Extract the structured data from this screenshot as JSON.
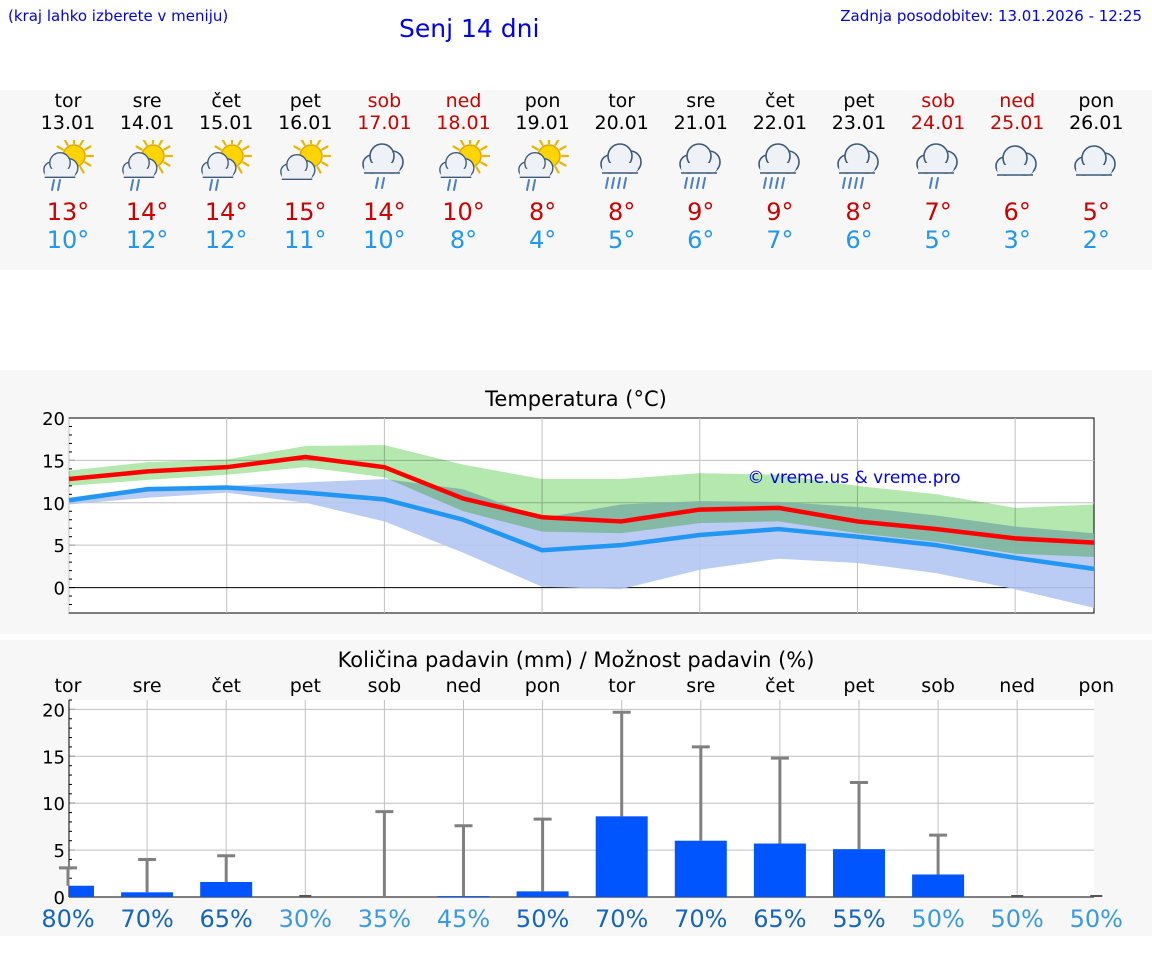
{
  "header": {
    "menu_hint": "(kraj lahko izberete v meniju)",
    "title": "Senj 14 dni",
    "last_update": "Zadnja posodobitev: 13.01.2026 - 12:25"
  },
  "days": [
    {
      "name": "tor",
      "date": "13.01",
      "tmax": "13°",
      "tmin": "10°",
      "icon": "sun-cloud-rain-icon",
      "weekend": false
    },
    {
      "name": "sre",
      "date": "14.01",
      "tmax": "14°",
      "tmin": "12°",
      "icon": "sun-cloud-rain-icon",
      "weekend": false
    },
    {
      "name": "čet",
      "date": "15.01",
      "tmax": "14°",
      "tmin": "12°",
      "icon": "sun-cloud-rain-icon",
      "weekend": false
    },
    {
      "name": "pet",
      "date": "16.01",
      "tmax": "15°",
      "tmin": "11°",
      "icon": "sun-cloud-icon",
      "weekend": false
    },
    {
      "name": "sob",
      "date": "17.01",
      "tmax": "14°",
      "tmin": "10°",
      "icon": "cloud-rain-icon",
      "weekend": true
    },
    {
      "name": "ned",
      "date": "18.01",
      "tmax": "10°",
      "tmin": "8°",
      "icon": "sun-cloud-rain-icon",
      "weekend": true
    },
    {
      "name": "pon",
      "date": "19.01",
      "tmax": "8°",
      "tmin": "4°",
      "icon": "sun-cloud-rain-icon",
      "weekend": false
    },
    {
      "name": "tor",
      "date": "20.01",
      "tmax": "8°",
      "tmin": "5°",
      "icon": "cloud-heavy-rain-icon",
      "weekend": false
    },
    {
      "name": "sre",
      "date": "21.01",
      "tmax": "9°",
      "tmin": "6°",
      "icon": "cloud-heavy-rain-icon",
      "weekend": false
    },
    {
      "name": "čet",
      "date": "22.01",
      "tmax": "9°",
      "tmin": "7°",
      "icon": "cloud-heavy-rain-icon",
      "weekend": false
    },
    {
      "name": "pet",
      "date": "23.01",
      "tmax": "8°",
      "tmin": "6°",
      "icon": "cloud-heavy-rain-icon",
      "weekend": false
    },
    {
      "name": "sob",
      "date": "24.01",
      "tmax": "7°",
      "tmin": "5°",
      "icon": "cloud-rain-icon",
      "weekend": true
    },
    {
      "name": "ned",
      "date": "25.01",
      "tmax": "6°",
      "tmin": "3°",
      "icon": "cloud-icon",
      "weekend": true
    },
    {
      "name": "pon",
      "date": "26.01",
      "tmax": "5°",
      "tmin": "2°",
      "icon": "cloud-icon",
      "weekend": false
    }
  ],
  "colors": {
    "max_line": "#ff0000",
    "min_line": "#2196f3",
    "max_band": "#a8e4a0",
    "min_band": "#b3c6f2",
    "precip_bar": "#0055ff",
    "error_bar": "#808080",
    "grid": "#c0c0c0",
    "prob_dark": "#1565c0",
    "prob_light": "#3b9ae1"
  },
  "chart_data": [
    {
      "type": "line",
      "title": "Temperatura (°C)",
      "watermark": "© vreme.us & vreme.pro",
      "ylim": [
        -3,
        20
      ],
      "yticks": [
        "0",
        "5",
        "10",
        "15",
        "20"
      ],
      "x": [
        0,
        1,
        2,
        3,
        4,
        5,
        6,
        7,
        8,
        9,
        10,
        11,
        12,
        13
      ],
      "series": [
        {
          "name": "max",
          "values": [
            12.8,
            13.7,
            14.2,
            15.4,
            14.2,
            10.5,
            8.3,
            7.8,
            9.2,
            9.4,
            7.8,
            6.9,
            5.8,
            5.3
          ],
          "band_low": [
            12.0,
            12.7,
            13.3,
            14.2,
            13.0,
            9.0,
            6.6,
            6.4,
            7.6,
            7.8,
            6.4,
            5.4,
            4.0,
            3.6
          ],
          "band_high": [
            13.8,
            14.8,
            15.1,
            16.7,
            16.8,
            14.5,
            12.8,
            12.8,
            13.5,
            13.3,
            12.0,
            11.0,
            9.4,
            9.8
          ]
        },
        {
          "name": "min",
          "values": [
            10.3,
            11.6,
            11.8,
            11.2,
            10.4,
            8.0,
            4.4,
            5.0,
            6.2,
            6.9,
            6.0,
            5.0,
            3.5,
            2.2
          ],
          "band_low": [
            9.8,
            10.6,
            11.2,
            10.0,
            7.8,
            4.1,
            0.1,
            -0.2,
            2.1,
            3.4,
            2.9,
            1.7,
            -0.2,
            -2.4
          ],
          "band_high": [
            10.6,
            11.9,
            12.0,
            12.4,
            12.8,
            11.6,
            8.2,
            9.8,
            10.2,
            10.1,
            9.5,
            8.5,
            7.2,
            6.4
          ]
        }
      ]
    },
    {
      "type": "bar",
      "title": "Količina padavin (mm) / Možnost padavin (%)",
      "categories": [
        "tor",
        "sre",
        "čet",
        "pet",
        "sob",
        "ned",
        "pon",
        "tor",
        "sre",
        "čet",
        "pet",
        "sob",
        "ned",
        "pon"
      ],
      "ylim": [
        0,
        21
      ],
      "yticks": [
        "0",
        "5",
        "10",
        "15",
        "20"
      ],
      "values": [
        1.2,
        0.5,
        1.6,
        0,
        0,
        0.1,
        0.6,
        8.6,
        6.0,
        5.7,
        5.1,
        2.4,
        0,
        0
      ],
      "error_high": [
        3.1,
        4.0,
        4.4,
        0,
        9.1,
        7.6,
        8.3,
        19.7,
        16.0,
        14.8,
        12.2,
        6.6,
        0,
        0
      ],
      "probabilities": [
        "80%",
        "70%",
        "65%",
        "30%",
        "35%",
        "45%",
        "50%",
        "70%",
        "70%",
        "65%",
        "55%",
        "50%",
        "50%",
        "50%"
      ]
    }
  ]
}
